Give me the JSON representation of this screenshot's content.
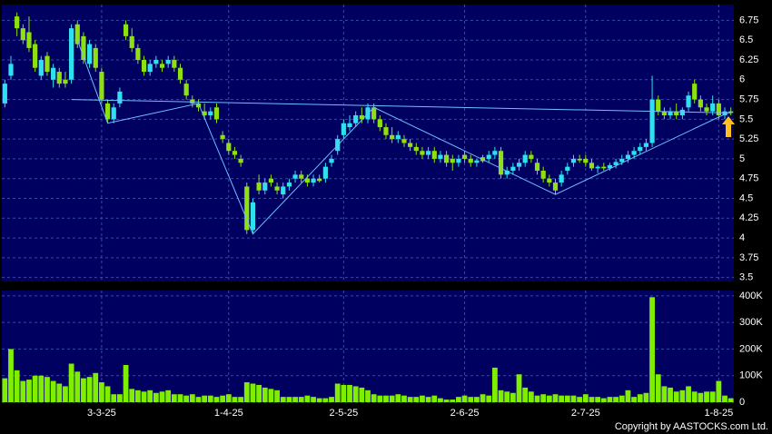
{
  "chart_data": [
    {
      "type": "candlestick",
      "up_color": "#2fe0f0",
      "down_color": "#8ee010",
      "ylim": [
        3.45,
        6.95
      ],
      "yticks": [
        6.75,
        6.5,
        6.25,
        6,
        5.75,
        5.5,
        5.25,
        5,
        4.75,
        4.5,
        4.25,
        4,
        3.75,
        3.5
      ],
      "grid": true,
      "open": [
        5.7,
        6.05,
        6.8,
        6.65,
        6.6,
        6.45,
        6.05,
        6.3,
        6.0,
        6.1,
        6.0,
        6.0,
        6.7,
        6.55,
        6.2,
        6.4,
        6.1,
        5.7,
        5.5,
        5.7,
        6.7,
        6.55,
        6.4,
        6.25,
        6.1,
        6.2,
        6.2,
        6.2,
        6.25,
        6.15,
        5.95,
        5.75,
        5.7,
        5.6,
        5.55,
        5.65,
        5.3,
        5.2,
        5.1,
        5.0,
        4.65,
        4.1,
        4.7,
        4.6,
        4.75,
        4.65,
        4.55,
        4.65,
        4.75,
        4.8,
        4.75,
        4.7,
        4.75,
        4.75,
        4.95,
        5.1,
        5.3,
        5.4,
        5.45,
        5.55,
        5.5,
        5.65,
        5.5,
        5.4,
        5.3,
        5.25,
        5.25,
        5.2,
        5.15,
        5.1,
        5.05,
        5.1,
        5.0,
        5.05,
        5.0,
        4.95,
        5.05,
        5.0,
        4.95,
        5.02,
        5.0,
        5.05,
        5.1,
        4.8,
        4.85,
        4.9,
        4.95,
        5.05,
        4.95,
        4.85,
        4.75,
        4.7,
        4.7,
        4.85,
        4.95,
        5.0,
        5.0,
        4.95,
        4.88,
        4.9,
        4.88,
        4.92,
        4.96,
        5.0,
        5.05,
        5.1,
        5.15,
        5.2,
        5.75,
        5.6,
        5.55,
        5.6,
        5.55,
        5.65,
        5.95,
        5.75,
        5.65,
        5.6,
        5.7,
        5.55,
        5.6
      ],
      "high": [
        6.0,
        6.3,
        6.85,
        6.7,
        6.8,
        6.5,
        6.3,
        6.35,
        6.2,
        6.15,
        6.1,
        6.7,
        6.75,
        6.6,
        6.5,
        6.45,
        6.15,
        5.75,
        5.7,
        5.9,
        6.75,
        6.65,
        6.45,
        6.3,
        6.25,
        6.3,
        6.25,
        6.3,
        6.3,
        6.2,
        6.0,
        5.8,
        5.75,
        5.7,
        5.65,
        5.7,
        5.35,
        5.25,
        5.15,
        5.05,
        4.7,
        4.5,
        4.8,
        4.75,
        4.8,
        4.7,
        4.7,
        4.75,
        4.85,
        4.85,
        4.8,
        4.8,
        4.8,
        4.95,
        5.05,
        5.3,
        5.5,
        5.55,
        5.6,
        5.65,
        5.7,
        5.7,
        5.55,
        5.45,
        5.4,
        5.35,
        5.3,
        5.25,
        5.2,
        5.15,
        5.15,
        5.15,
        5.1,
        5.1,
        5.05,
        5.05,
        5.1,
        5.05,
        5.0,
        5.05,
        5.1,
        5.15,
        5.15,
        4.9,
        4.95,
        5.0,
        5.1,
        5.1,
        5.0,
        4.9,
        4.8,
        4.75,
        4.85,
        4.95,
        5.05,
        5.05,
        5.05,
        5.0,
        4.92,
        4.95,
        4.95,
        5.0,
        5.05,
        5.1,
        5.15,
        5.2,
        5.25,
        6.05,
        5.8,
        5.65,
        5.65,
        5.7,
        5.65,
        5.85,
        6.0,
        5.8,
        5.7,
        5.8,
        5.75,
        5.65,
        5.65
      ],
      "low": [
        5.65,
        6.0,
        6.55,
        6.45,
        6.35,
        6.1,
        6.0,
        6.05,
        5.9,
        5.9,
        5.9,
        5.95,
        6.4,
        6.2,
        6.15,
        6.1,
        5.7,
        5.45,
        5.45,
        5.65,
        6.5,
        6.35,
        6.2,
        6.05,
        6.05,
        6.15,
        6.1,
        6.15,
        6.1,
        5.95,
        5.75,
        5.65,
        5.6,
        5.5,
        5.5,
        5.45,
        5.2,
        5.05,
        5.0,
        4.9,
        4.05,
        4.05,
        4.55,
        4.55,
        4.65,
        4.55,
        4.5,
        4.6,
        4.7,
        4.7,
        4.65,
        4.65,
        4.7,
        4.7,
        4.9,
        5.05,
        5.25,
        5.35,
        5.4,
        5.45,
        5.45,
        5.45,
        5.35,
        5.25,
        5.2,
        5.2,
        5.15,
        5.1,
        5.05,
        5.0,
        5.0,
        4.95,
        4.95,
        4.9,
        4.85,
        4.9,
        4.95,
        4.9,
        4.9,
        4.95,
        4.95,
        5.0,
        4.75,
        4.75,
        4.8,
        4.85,
        4.9,
        4.95,
        4.8,
        4.7,
        4.65,
        4.55,
        4.65,
        4.8,
        4.9,
        4.95,
        4.9,
        4.85,
        4.82,
        4.85,
        4.85,
        4.88,
        4.92,
        4.95,
        5.0,
        5.05,
        5.1,
        5.15,
        5.55,
        5.5,
        5.5,
        5.5,
        5.5,
        5.6,
        5.7,
        5.6,
        5.55,
        5.55,
        5.5,
        5.5,
        5.55
      ],
      "close": [
        5.95,
        6.2,
        6.65,
        6.5,
        6.4,
        6.15,
        6.25,
        6.1,
        6.15,
        5.95,
        5.95,
        6.65,
        6.45,
        6.25,
        6.45,
        6.15,
        5.75,
        5.5,
        5.65,
        5.85,
        6.55,
        6.4,
        6.25,
        6.1,
        6.2,
        6.25,
        6.15,
        6.25,
        6.15,
        6.0,
        5.8,
        5.7,
        5.65,
        5.55,
        5.6,
        5.5,
        5.25,
        5.1,
        5.05,
        4.95,
        4.1,
        4.45,
        4.6,
        4.7,
        4.7,
        4.6,
        4.65,
        4.7,
        4.8,
        4.75,
        4.7,
        4.75,
        4.72,
        4.9,
        5.0,
        5.25,
        5.45,
        5.45,
        5.55,
        5.5,
        5.65,
        5.5,
        5.4,
        5.3,
        5.25,
        5.3,
        5.2,
        5.15,
        5.1,
        5.05,
        5.1,
        5.0,
        5.05,
        4.95,
        4.95,
        5.0,
        5.0,
        4.95,
        4.98,
        4.97,
        5.05,
        5.1,
        4.8,
        4.85,
        4.9,
        4.95,
        5.05,
        5.0,
        4.85,
        4.75,
        4.7,
        4.6,
        4.8,
        4.9,
        5.0,
        4.98,
        4.95,
        4.88,
        4.9,
        4.88,
        4.92,
        4.96,
        5.0,
        5.05,
        5.1,
        5.15,
        5.2,
        5.75,
        5.6,
        5.55,
        5.6,
        5.55,
        5.62,
        5.8,
        5.75,
        5.65,
        5.6,
        5.7,
        5.55,
        5.6,
        5.58
      ],
      "trendlines": [
        {
          "color": "#6fc0ff",
          "x": [
            12,
            17,
            32,
            41,
            61,
            91,
            120
          ],
          "values": [
            6.5,
            5.45,
            5.7,
            4.05,
            5.65,
            4.55,
            5.6
          ]
        },
        {
          "color": "#6fc0ff",
          "x": [
            11,
            120
          ],
          "values": [
            5.75,
            5.58
          ]
        }
      ]
    },
    {
      "type": "bar",
      "color": "#7fee00",
      "ylim": [
        0,
        420000
      ],
      "yticks": [
        {
          "value": 400000,
          "label": "400K"
        },
        {
          "value": 300000,
          "label": "300K"
        },
        {
          "value": 200000,
          "label": "200K"
        },
        {
          "value": 100000,
          "label": "100K"
        },
        0
      ],
      "grid": true,
      "categories": [
        null,
        null,
        null,
        null,
        null,
        null,
        null,
        null,
        null,
        null,
        null,
        null,
        null,
        null,
        null,
        null,
        "3-3-25",
        null,
        null,
        null,
        null,
        null,
        null,
        null,
        null,
        null,
        null,
        null,
        null,
        null,
        null,
        null,
        null,
        null,
        null,
        null,
        null,
        "1-4-25",
        null,
        null,
        null,
        null,
        null,
        null,
        null,
        null,
        null,
        null,
        null,
        null,
        null,
        null,
        null,
        null,
        null,
        null,
        "2-5-25",
        null,
        null,
        null,
        null,
        null,
        null,
        null,
        null,
        null,
        null,
        null,
        null,
        null,
        null,
        null,
        null,
        null,
        null,
        null,
        "2-6-25",
        null,
        null,
        null,
        null,
        null,
        null,
        null,
        null,
        null,
        null,
        null,
        null,
        null,
        null,
        null,
        null,
        null,
        null,
        null,
        "2-7-25",
        null,
        null,
        null,
        null,
        null,
        null,
        null,
        null,
        null,
        null,
        null,
        null,
        null,
        null,
        null,
        null,
        null,
        null,
        null,
        null,
        null,
        "1-8-25",
        null,
        null
      ],
      "values": [
        90000,
        200000,
        120000,
        80000,
        85000,
        100000,
        100000,
        95000,
        80000,
        70000,
        60000,
        145000,
        115000,
        90000,
        95000,
        110000,
        75000,
        60000,
        30000,
        30000,
        140000,
        50000,
        45000,
        40000,
        45000,
        35000,
        40000,
        45000,
        30000,
        30000,
        25000,
        30000,
        20000,
        25000,
        25000,
        20000,
        25000,
        30000,
        20000,
        20000,
        75000,
        70000,
        65000,
        55000,
        50000,
        45000,
        20000,
        20000,
        20000,
        20000,
        25000,
        20000,
        15000,
        15000,
        20000,
        70000,
        65000,
        65000,
        60000,
        55000,
        45000,
        30000,
        25000,
        25000,
        25000,
        30000,
        25000,
        20000,
        20000,
        25000,
        20000,
        25000,
        15000,
        10000,
        10000,
        20000,
        25000,
        20000,
        20000,
        30000,
        25000,
        130000,
        45000,
        40000,
        35000,
        105000,
        55000,
        40000,
        25000,
        30000,
        25000,
        30000,
        25000,
        25000,
        25000,
        20000,
        30000,
        20000,
        20000,
        15000,
        20000,
        20000,
        25000,
        45000,
        20000,
        30000,
        35000,
        395000,
        105000,
        60000,
        55000,
        40000,
        45000,
        60000,
        40000,
        35000,
        40000,
        40000,
        80000,
        25000,
        15000
      ]
    }
  ],
  "copyright": "Copyright by AASTOCKS.com Ltd."
}
